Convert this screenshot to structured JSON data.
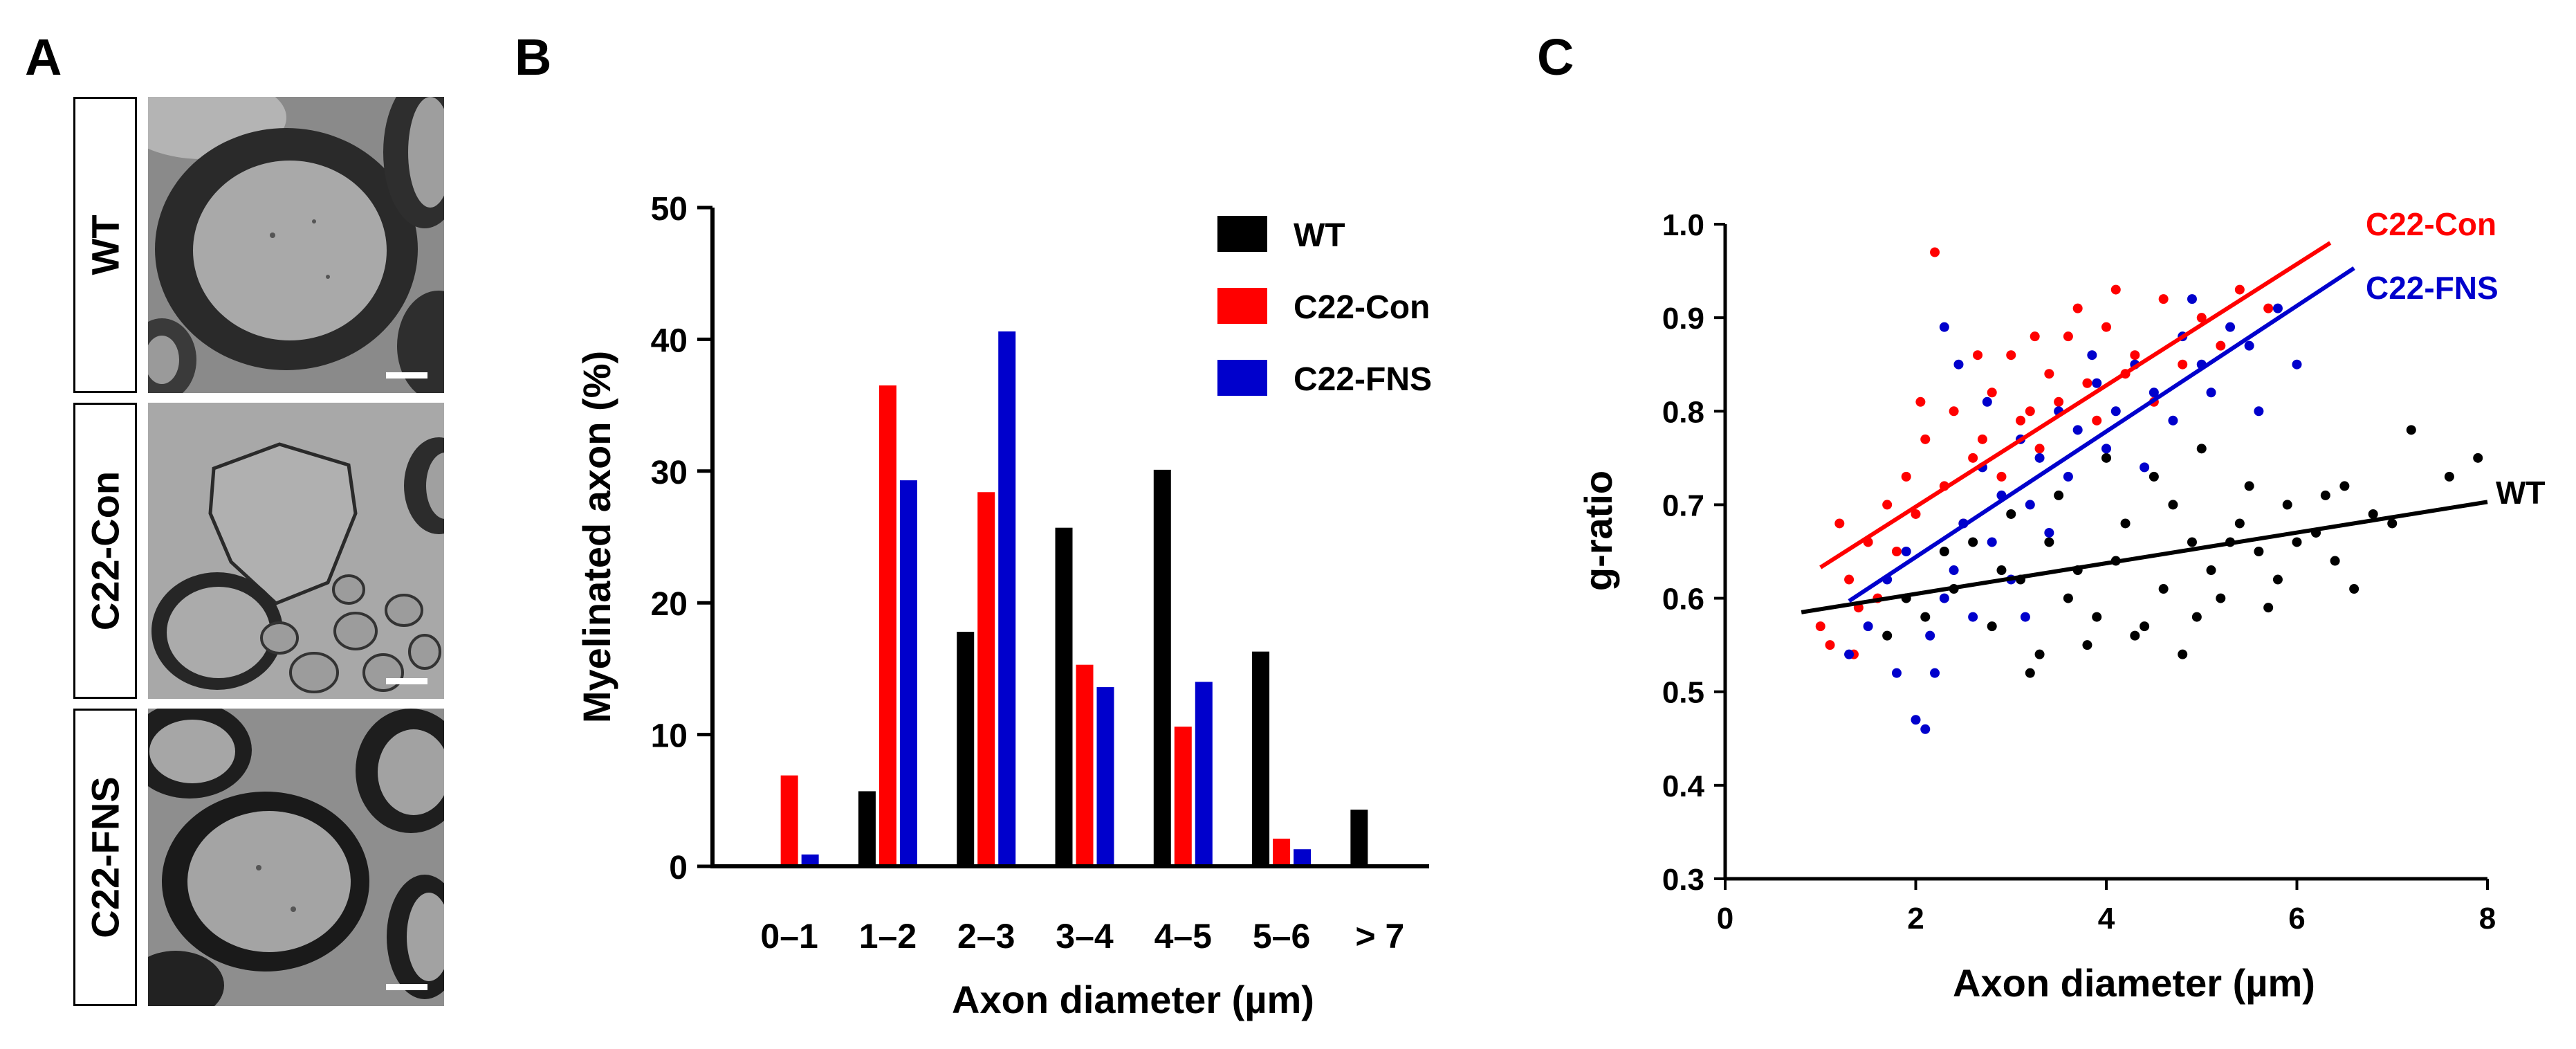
{
  "panels": {
    "a": {
      "letter": "A",
      "rows": [
        {
          "label": "WT"
        },
        {
          "label": "C22-Con"
        },
        {
          "label": "C22-FNS"
        }
      ]
    },
    "b": {
      "letter": "B"
    },
    "c": {
      "letter": "C"
    }
  },
  "colors": {
    "wt": "#000000",
    "con": "#ff0000",
    "fns": "#0000cc"
  },
  "chart_data": [
    {
      "id": "B",
      "type": "bar",
      "title": "",
      "xlabel": "Axon diameter (µm)",
      "ylabel": "Myelinated axon (%)",
      "ylim": [
        0,
        50
      ],
      "yticks": [
        "0",
        "10",
        "20",
        "30",
        "40",
        "50"
      ],
      "categories": [
        "0–1",
        "1–2",
        "2–3",
        "3–4",
        "4–5",
        "5–6",
        "> 7"
      ],
      "series": [
        {
          "name": "WT",
          "color": "#000000",
          "values": [
            0,
            5.7,
            17.8,
            25.7,
            30.1,
            16.3,
            4.3
          ]
        },
        {
          "name": "C22-Con",
          "color": "#ff0000",
          "values": [
            6.9,
            36.5,
            28.4,
            15.3,
            10.6,
            2.1,
            0
          ]
        },
        {
          "name": "C22-FNS",
          "color": "#0000cc",
          "values": [
            0.9,
            29.3,
            40.6,
            13.6,
            14.0,
            1.3,
            0
          ]
        }
      ],
      "legend": {
        "position": "top-right",
        "entries": [
          "WT",
          "C22-Con",
          "C22-FNS"
        ]
      }
    },
    {
      "id": "C",
      "type": "scatter",
      "title": "",
      "xlabel": "Axon diameter (µm)",
      "ylabel": "g-ratio",
      "xlim": [
        0,
        8
      ],
      "ylim": [
        0.3,
        1.0
      ],
      "xticks": [
        "0",
        "2",
        "4",
        "6",
        "8"
      ],
      "yticks": [
        "0.3",
        "0.4",
        "0.5",
        "0.6",
        "0.7",
        "0.8",
        "0.9",
        "1.0"
      ],
      "series": [
        {
          "name": "WT",
          "color": "#000000",
          "points": [
            [
              1.7,
              0.56
            ],
            [
              2.1,
              0.58
            ],
            [
              2.4,
              0.61
            ],
            [
              2.8,
              0.57
            ],
            [
              3.1,
              0.62
            ],
            [
              3.3,
              0.54
            ],
            [
              3.6,
              0.6
            ],
            [
              3.9,
              0.58
            ],
            [
              4.1,
              0.64
            ],
            [
              4.3,
              0.56
            ],
            [
              4.6,
              0.61
            ],
            [
              4.9,
              0.66
            ],
            [
              5.1,
              0.63
            ],
            [
              5.4,
              0.68
            ],
            [
              5.6,
              0.65
            ],
            [
              5.9,
              0.7
            ],
            [
              6.2,
              0.67
            ],
            [
              6.5,
              0.72
            ],
            [
              6.8,
              0.69
            ],
            [
              7.2,
              0.78
            ],
            [
              7.6,
              0.73
            ],
            [
              7.9,
              0.75
            ],
            [
              2.6,
              0.66
            ],
            [
              3.0,
              0.69
            ],
            [
              3.5,
              0.71
            ],
            [
              4.0,
              0.75
            ],
            [
              4.5,
              0.73
            ],
            [
              5.0,
              0.76
            ],
            [
              5.5,
              0.72
            ],
            [
              3.2,
              0.52
            ],
            [
              3.8,
              0.55
            ],
            [
              4.4,
              0.57
            ],
            [
              4.8,
              0.54
            ],
            [
              5.2,
              0.6
            ],
            [
              5.8,
              0.62
            ],
            [
              6.4,
              0.64
            ],
            [
              2.3,
              0.65
            ],
            [
              2.9,
              0.63
            ],
            [
              3.4,
              0.66
            ],
            [
              4.2,
              0.68
            ],
            [
              4.7,
              0.7
            ],
            [
              5.3,
              0.66
            ],
            [
              6.0,
              0.66
            ],
            [
              6.6,
              0.61
            ],
            [
              7.0,
              0.68
            ],
            [
              1.9,
              0.6
            ],
            [
              3.7,
              0.63
            ],
            [
              4.95,
              0.58
            ],
            [
              5.7,
              0.59
            ],
            [
              6.3,
              0.71
            ]
          ]
        },
        {
          "name": "C22-Con",
          "color": "#ff0000",
          "points": [
            [
              1.1,
              0.55
            ],
            [
              1.3,
              0.62
            ],
            [
              1.5,
              0.66
            ],
            [
              1.7,
              0.7
            ],
            [
              1.9,
              0.73
            ],
            [
              2.1,
              0.77
            ],
            [
              2.2,
              0.97
            ],
            [
              2.4,
              0.8
            ],
            [
              2.6,
              0.75
            ],
            [
              2.8,
              0.82
            ],
            [
              3.0,
              0.86
            ],
            [
              3.2,
              0.8
            ],
            [
              3.4,
              0.84
            ],
            [
              3.6,
              0.88
            ],
            [
              3.8,
              0.83
            ],
            [
              4.0,
              0.89
            ],
            [
              4.3,
              0.86
            ],
            [
              4.6,
              0.92
            ],
            [
              5.0,
              0.9
            ],
            [
              5.4,
              0.93
            ],
            [
              5.7,
              0.91
            ],
            [
              1.4,
              0.59
            ],
            [
              1.8,
              0.65
            ],
            [
              2.0,
              0.69
            ],
            [
              2.3,
              0.72
            ],
            [
              2.5,
              0.68
            ],
            [
              2.7,
              0.77
            ],
            [
              2.9,
              0.73
            ],
            [
              3.1,
              0.79
            ],
            [
              3.3,
              0.76
            ],
            [
              3.5,
              0.81
            ],
            [
              3.9,
              0.79
            ],
            [
              4.2,
              0.84
            ],
            [
              4.5,
              0.81
            ],
            [
              4.8,
              0.85
            ],
            [
              1.2,
              0.68
            ],
            [
              1.6,
              0.6
            ],
            [
              2.05,
              0.81
            ],
            [
              2.65,
              0.86
            ],
            [
              3.25,
              0.88
            ],
            [
              1.0,
              0.57
            ],
            [
              1.35,
              0.54
            ],
            [
              4.1,
              0.93
            ],
            [
              5.2,
              0.87
            ],
            [
              3.7,
              0.91
            ]
          ]
        },
        {
          "name": "C22-FNS",
          "color": "#0000cc",
          "points": [
            [
              1.3,
              0.54
            ],
            [
              1.5,
              0.57
            ],
            [
              1.7,
              0.62
            ],
            [
              1.9,
              0.65
            ],
            [
              2.0,
              0.47
            ],
            [
              2.1,
              0.46
            ],
            [
              2.2,
              0.52
            ],
            [
              2.3,
              0.6
            ],
            [
              2.5,
              0.68
            ],
            [
              2.7,
              0.74
            ],
            [
              2.9,
              0.71
            ],
            [
              3.1,
              0.77
            ],
            [
              3.3,
              0.75
            ],
            [
              3.5,
              0.8
            ],
            [
              3.7,
              0.78
            ],
            [
              3.9,
              0.83
            ],
            [
              4.1,
              0.8
            ],
            [
              4.3,
              0.85
            ],
            [
              4.5,
              0.82
            ],
            [
              4.8,
              0.88
            ],
            [
              5.0,
              0.85
            ],
            [
              5.3,
              0.89
            ],
            [
              5.5,
              0.87
            ],
            [
              5.8,
              0.91
            ],
            [
              6.0,
              0.85
            ],
            [
              2.3,
              0.89
            ],
            [
              2.4,
              0.63
            ],
            [
              2.6,
              0.58
            ],
            [
              2.8,
              0.66
            ],
            [
              3.0,
              0.62
            ],
            [
              3.2,
              0.7
            ],
            [
              3.4,
              0.67
            ],
            [
              3.6,
              0.73
            ],
            [
              4.0,
              0.76
            ],
            [
              4.4,
              0.74
            ],
            [
              4.7,
              0.79
            ],
            [
              5.1,
              0.82
            ],
            [
              2.15,
              0.56
            ],
            [
              1.8,
              0.52
            ],
            [
              2.75,
              0.81
            ],
            [
              3.85,
              0.86
            ],
            [
              4.9,
              0.92
            ],
            [
              5.6,
              0.8
            ],
            [
              3.15,
              0.58
            ],
            [
              2.45,
              0.85
            ]
          ]
        }
      ],
      "fit_lines": [
        {
          "name": "WT",
          "color": "#000000",
          "x": [
            0.8,
            8.0
          ],
          "y": [
            0.585,
            0.703
          ]
        },
        {
          "name": "C22-Con",
          "color": "#ff0000",
          "x": [
            1.0,
            6.35
          ],
          "y": [
            0.633,
            0.98
          ]
        },
        {
          "name": "C22-FNS",
          "color": "#0000cc",
          "x": [
            1.3,
            6.6
          ],
          "y": [
            0.597,
            0.953
          ]
        }
      ],
      "line_labels": [
        {
          "text": "C22-Con",
          "color": "#ff0000"
        },
        {
          "text": "C22-FNS",
          "color": "#0000cc"
        },
        {
          "text": "WT",
          "color": "#000000"
        }
      ]
    }
  ]
}
